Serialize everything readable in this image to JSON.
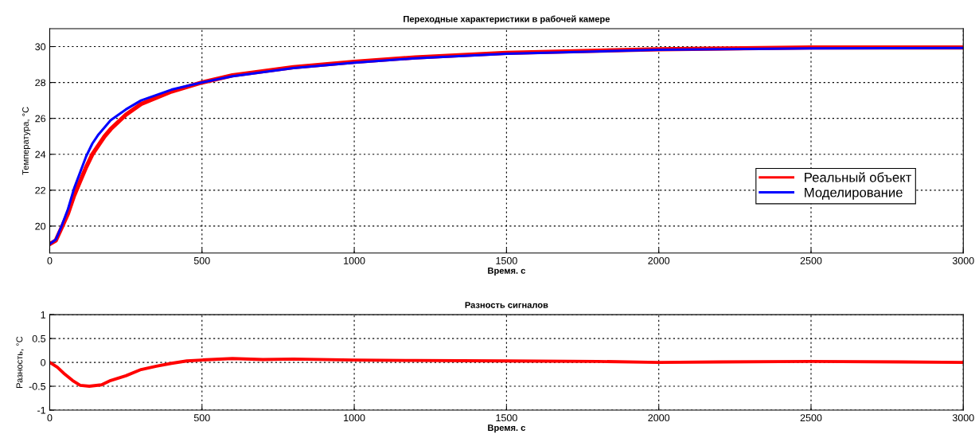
{
  "chart_data": [
    {
      "type": "line",
      "title": "Переходные характеристики в рабочей камере",
      "xlabel": "Время. с",
      "ylabel": "Температура, °C",
      "xlim": [
        0,
        3000
      ],
      "xticks": [
        0,
        500,
        1000,
        1500,
        2000,
        2500,
        3000
      ],
      "ylim": [
        18.5,
        31
      ],
      "yticks": [
        20,
        22,
        24,
        26,
        28,
        30
      ],
      "grid": true,
      "legend": "bottom right",
      "line_style": "solid",
      "marker": "none",
      "series": [
        {
          "name": "Реальный объект",
          "color": "#ff0000",
          "x": [
            0,
            20,
            40,
            60,
            80,
            100,
            120,
            140,
            160,
            180,
            200,
            250,
            300,
            400,
            500,
            600,
            800,
            1000,
            1200,
            1500,
            2000,
            2500,
            3000
          ],
          "values": [
            19.0,
            19.2,
            19.95,
            20.7,
            21.7,
            22.5,
            23.3,
            24.0,
            24.5,
            25.0,
            25.4,
            26.2,
            26.8,
            27.5,
            28.0,
            28.4,
            28.85,
            29.15,
            29.4,
            29.65,
            29.85,
            29.95,
            29.95
          ]
        },
        {
          "name": "Моделирование",
          "color": "#0000ff",
          "x": [
            0,
            20,
            40,
            60,
            80,
            100,
            120,
            140,
            160,
            180,
            200,
            250,
            300,
            400,
            500,
            600,
            800,
            1000,
            1200,
            1500,
            2000,
            2500,
            3000
          ],
          "values": [
            19.0,
            19.25,
            20.05,
            20.95,
            22.1,
            23.0,
            23.9,
            24.6,
            25.1,
            25.5,
            25.9,
            26.5,
            27.0,
            27.6,
            28.0,
            28.35,
            28.8,
            29.1,
            29.35,
            29.6,
            29.82,
            29.9,
            29.92
          ]
        }
      ]
    },
    {
      "type": "line",
      "title": "Разность сигналов",
      "xlabel": "Время. с",
      "ylabel": "Разность, °C",
      "xlim": [
        0,
        3000
      ],
      "xticks": [
        0,
        500,
        1000,
        1500,
        2000,
        2500,
        3000
      ],
      "ylim": [
        -1,
        1
      ],
      "yticks": [
        -1,
        -0.5,
        0,
        0.5,
        1
      ],
      "grid": true,
      "line_style": "solid",
      "marker": "none",
      "series": [
        {
          "color": "#ff0000",
          "x": [
            0,
            25,
            50,
            75,
            100,
            130,
            170,
            200,
            250,
            300,
            350,
            400,
            450,
            500,
            600,
            700,
            800,
            1000,
            1200,
            1500,
            1800,
            2000,
            2200,
            2500,
            2800,
            3000
          ],
          "values": [
            0.0,
            -0.1,
            -0.25,
            -0.38,
            -0.48,
            -0.5,
            -0.47,
            -0.38,
            -0.28,
            -0.15,
            -0.08,
            -0.02,
            0.03,
            0.05,
            0.08,
            0.06,
            0.07,
            0.05,
            0.04,
            0.03,
            0.02,
            0.0,
            0.01,
            0.02,
            0.01,
            0.0
          ]
        }
      ]
    }
  ]
}
